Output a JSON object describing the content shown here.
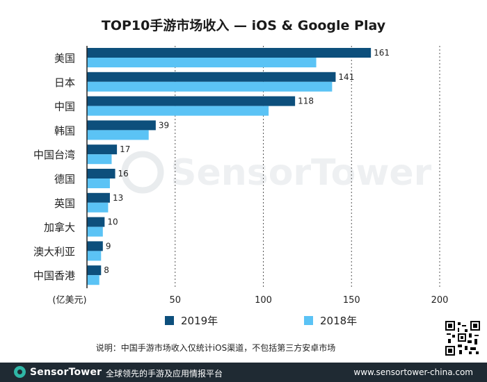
{
  "chart_data": {
    "type": "bar",
    "orientation": "horizontal",
    "title": "TOP10手游市场收入 — iOS & Google Play",
    "categories": [
      "美国",
      "日本",
      "中国",
      "韩国",
      "中国台湾",
      "德国",
      "英国",
      "加拿大",
      "澳大利亚",
      "中国香港"
    ],
    "series": [
      {
        "name": "2019年",
        "color": "#0d4f7c",
        "values": [
          161,
          141,
          118,
          39,
          17,
          16,
          13,
          10,
          9,
          8
        ],
        "labels": [
          "161",
          "141",
          "118",
          "39",
          "17",
          "16",
          "13",
          "10",
          "9",
          "8"
        ]
      },
      {
        "name": "2018年",
        "color": "#5bc3f5",
        "values": [
          130,
          139,
          103,
          35,
          14,
          13,
          12,
          9,
          8,
          7
        ]
      }
    ],
    "xlim": [
      0,
      200
    ],
    "x_ticks": [
      50,
      100,
      150,
      200
    ],
    "x_tick_labels": [
      "50",
      "100",
      "150",
      "200"
    ],
    "xlabel": "(亿美元)",
    "grid": "vertical-dotted"
  },
  "note": "说明：中国手游市场收入仅统计iOS渠道，不包括第三方安卓市场",
  "footer": {
    "brand": "SensorTower",
    "slogan": "全球领先的手游及应用情报平台",
    "url": "www.sensortower-china.com"
  },
  "watermark": "SensorTower",
  "colors": {
    "footer_bg": "#1f2a33",
    "accent": "#2fb7a7"
  }
}
